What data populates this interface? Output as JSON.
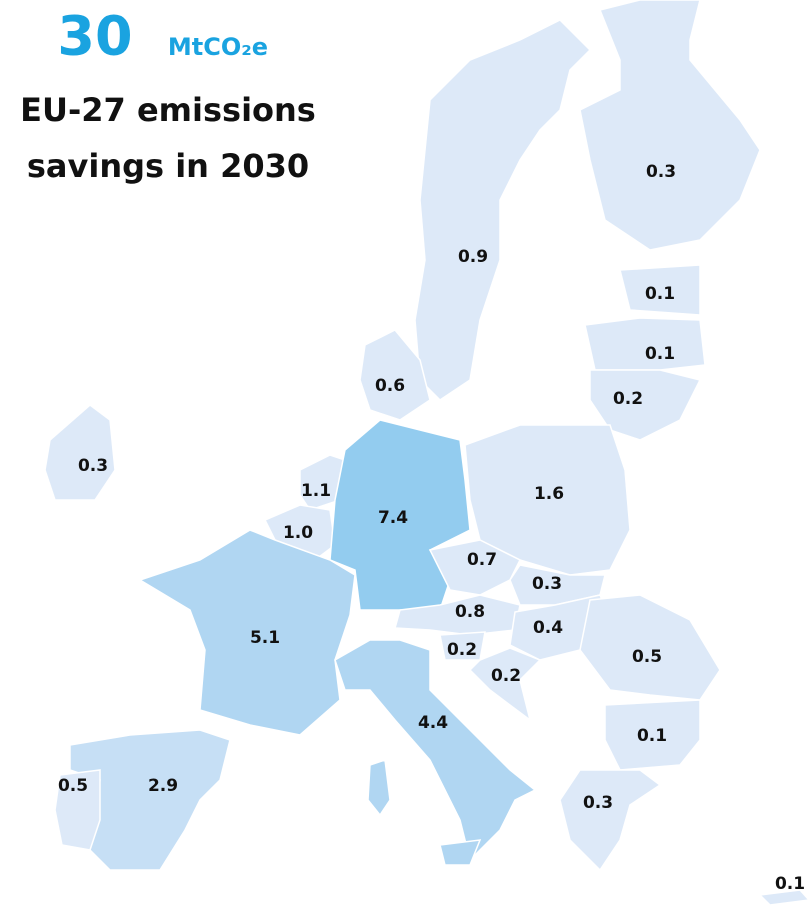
{
  "headline": {
    "number": "30",
    "unit": "MtCO₂e"
  },
  "title": [
    "EU-27 emissions",
    "savings in 2030"
  ],
  "labels": [
    "0.3",
    "0.9",
    "0.1",
    "0.1",
    "0.2",
    "0.6",
    "0.3",
    "1.1",
    "1.0",
    "7.4",
    "1.6",
    "0.7",
    "0.3",
    "0.8",
    "0.4",
    "0.2",
    "0.2",
    "0.5",
    "5.1",
    "4.4",
    "0.1",
    "0.5",
    "2.9",
    "0.3",
    "0.1"
  ]
}
